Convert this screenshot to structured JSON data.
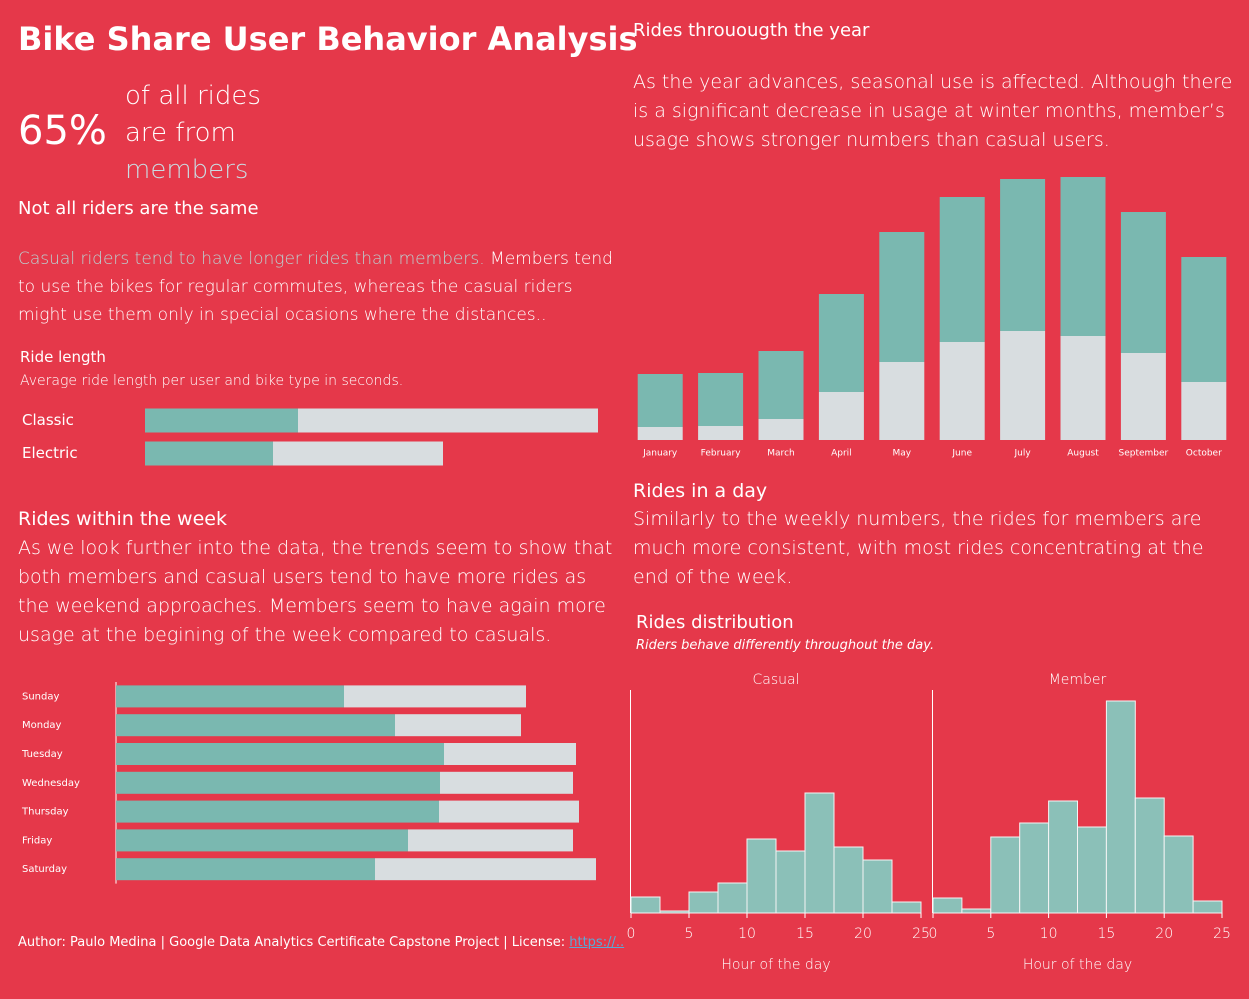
{
  "header": {
    "title": "Bike Share User Behavior Analysis",
    "kpi": "65%",
    "kpi_line1": "of all rides",
    "kpi_line2": "are from",
    "kpi_line3": "members"
  },
  "riders": {
    "heading": "Not all riders are the same",
    "highlight": "Casual riders tend to have longer rides than members.",
    "text": " Members tend to use the bikes for regular commutes, whereas the casual riders might use them only in special ocasions where the distances.."
  },
  "week": {
    "heading": "Rides within the week",
    "text": "As we look further into the data, the trends seem to show that both members and casual users tend to have more rides as the weekend approaches. Members seem to have again more usage at the begining of the week compared to casuals."
  },
  "year": {
    "heading": "Rides throuougth the year",
    "text": "As the year advances, seasonal use is affected. Although there is a significant decrease in usage at winter months, member’s usage shows stronger numbers than casual users."
  },
  "day": {
    "heading": "Rides in a day",
    "text": "Similarly to the weekly numbers, the rides for members are much more consistent, with most rides concentrating at the end of the week."
  },
  "footer": {
    "text": "Author: Paulo Medina | Google Data Analytics Certificate Capstone Project | License: ",
    "link": "https://.."
  },
  "chart_data": [
    {
      "type": "hbar",
      "title": "Ride length",
      "subtitle": "Average ride length per user and bike type in seconds.",
      "categories": [
        "Classic",
        "Electric"
      ],
      "xlim": [
        0,
        2400
      ],
      "series": [
        {
          "color": "#7ab8b0",
          "values": [
            765,
            640
          ]
        },
        {
          "color": "#d8dde0",
          "values": [
            1500,
            850
          ]
        }
      ]
    },
    {
      "type": "hbar",
      "categories": [
        "Sunday",
        "Monday",
        "Tuesday",
        "Wednesday",
        "Thursday",
        "Friday",
        "Saturday"
      ],
      "xlim": [
        0,
        500
      ],
      "series": [
        {
          "color": "#7ab8b0",
          "values": [
            228,
            279,
            328,
            324,
            323,
            292,
            259
          ]
        },
        {
          "color": "#d8dde0",
          "values": [
            182,
            126,
            132,
            133,
            140,
            165,
            221
          ]
        }
      ]
    },
    {
      "type": "vbar",
      "categories": [
        "January",
        "February",
        "March",
        "April",
        "May",
        "June",
        "July",
        "August",
        "September",
        "October"
      ],
      "ylim": [
        0,
        280
      ],
      "series": [
        {
          "color": "#d8dde0",
          "values": [
            13,
            14,
            21,
            48,
            78,
            98,
            109,
            104,
            87,
            58
          ]
        },
        {
          "color": "#7ab8b0",
          "values": [
            53,
            53,
            68,
            98,
            130,
            145,
            152,
            159,
            141,
            125
          ]
        }
      ]
    },
    {
      "type": "histogram",
      "heading": "Rides distribution",
      "subtitle": "Riders behave differently throughout the day.",
      "title": "Casual",
      "xlabel": "Hour of the day",
      "color": "#8bc0b8",
      "bins": [
        0,
        2.5,
        5,
        7.5,
        10,
        12.5,
        15,
        17.5,
        20,
        22.5,
        25
      ],
      "counts": [
        16,
        2,
        21,
        30,
        74,
        62,
        120,
        66,
        53,
        11
      ],
      "xlim": [
        0,
        25
      ],
      "xticks": [
        0,
        5,
        10,
        15,
        20,
        25
      ],
      "ylim": [
        0,
        230
      ]
    },
    {
      "type": "histogram",
      "title": "Member",
      "xlabel": "Hour of the day",
      "color": "#8bc0b8",
      "bins": [
        0,
        2.5,
        5,
        7.5,
        10,
        12.5,
        15,
        17.5,
        20,
        22.5,
        25
      ],
      "counts": [
        15,
        4,
        76,
        90,
        112,
        86,
        212,
        115,
        77,
        12
      ],
      "xlim": [
        0,
        25
      ],
      "xticks": [
        0,
        5,
        10,
        15,
        20,
        25
      ],
      "ylim": [
        0,
        230
      ]
    }
  ]
}
